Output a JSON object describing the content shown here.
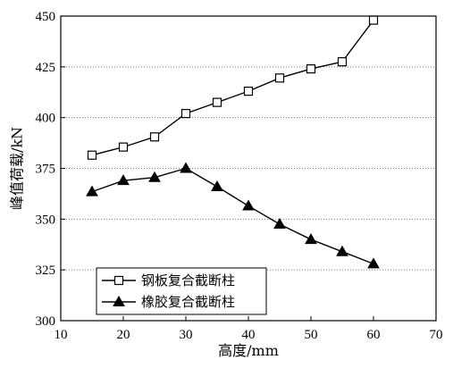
{
  "chart_data": {
    "type": "line",
    "xlabel": "高度/mm",
    "ylabel": "峰值荷载/kN",
    "xlim": [
      10,
      70
    ],
    "ylim": [
      300,
      450
    ],
    "xticks": [
      10,
      20,
      30,
      40,
      50,
      60,
      70
    ],
    "yticks": [
      300,
      325,
      350,
      375,
      400,
      425,
      450
    ],
    "grid": "horizontal-dotted",
    "legend_position": "bottom-left",
    "series": [
      {
        "name": "钢板复合截断柱",
        "marker": "open-square",
        "color": "#000000",
        "x": [
          15,
          20,
          25,
          30,
          35,
          40,
          45,
          50,
          55,
          60
        ],
        "y": [
          381.5,
          385.5,
          390.5,
          402.0,
          407.5,
          413.0,
          419.5,
          424.0,
          427.5,
          448.0
        ]
      },
      {
        "name": "橡胶复合截断柱",
        "marker": "filled-triangle",
        "color": "#000000",
        "x": [
          15,
          20,
          25,
          30,
          35,
          40,
          45,
          50,
          55,
          60
        ],
        "y": [
          363.5,
          369.0,
          370.5,
          375.0,
          366.0,
          356.5,
          347.5,
          340.0,
          334.0,
          328.0
        ]
      }
    ]
  }
}
